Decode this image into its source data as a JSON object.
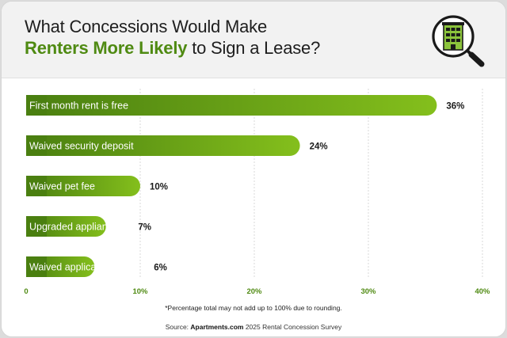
{
  "header": {
    "title_line1": "What Concessions Would Make",
    "title_accent": "Renters More Likely",
    "title_rest": " to Sign a Lease?",
    "icon": "building-magnifier-icon"
  },
  "chart_data": {
    "type": "bar",
    "orientation": "horizontal",
    "categories": [
      "First month rent is free",
      "Waived security deposit",
      "Waived pet fee",
      "Upgraded appliances",
      "Waived application fee"
    ],
    "values": [
      36,
      24,
      10,
      7,
      6
    ],
    "value_labels": [
      "36%",
      "24%",
      "10%",
      "7%",
      "6%"
    ],
    "xlim": [
      0,
      40
    ],
    "xticks": [
      0,
      10,
      20,
      30,
      40
    ],
    "xtick_labels": [
      "0",
      "10%",
      "20%",
      "30%",
      "40%"
    ],
    "grid": "vertical dashed",
    "colors": {
      "bar_start": "#4a7f10",
      "bar_end": "#84bf1c",
      "tick_label": "#4f8a12"
    }
  },
  "footnote": "*Percentage total may not add up to 100% due to rounding.",
  "source": {
    "prefix": "Source: ",
    "brand": "Apartments.com",
    "suffix": " 2025 Rental Concession Survey"
  }
}
